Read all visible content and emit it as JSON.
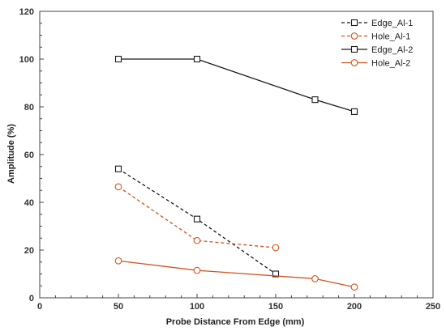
{
  "chart_data": {
    "type": "line",
    "title": "",
    "xlabel": "Probe Distance From Edge (mm)",
    "ylabel": "Amplitude (%)",
    "xlim": [
      0,
      250
    ],
    "ylim": [
      0,
      120
    ],
    "x_ticks": [
      0,
      50,
      100,
      150,
      200,
      250
    ],
    "y_ticks": [
      0,
      20,
      40,
      60,
      80,
      100,
      120
    ],
    "grid": false,
    "legend_position": "top-right",
    "series": [
      {
        "name": "Edge_Al-1",
        "color": "#1a1a1a",
        "line_style": "dashed",
        "marker": "square",
        "points": [
          [
            50,
            54
          ],
          [
            100,
            33
          ],
          [
            150,
            10
          ]
        ]
      },
      {
        "name": "Hole_Al-1",
        "color": "#d2541e",
        "line_style": "dashed",
        "marker": "circle",
        "points": [
          [
            50,
            46.5
          ],
          [
            100,
            24
          ],
          [
            150,
            21
          ]
        ]
      },
      {
        "name": "Edge_Al-2",
        "color": "#1a1a1a",
        "line_style": "solid",
        "marker": "square",
        "points": [
          [
            50,
            100
          ],
          [
            100,
            100
          ],
          [
            175,
            83
          ],
          [
            200,
            78
          ]
        ]
      },
      {
        "name": "Hole_Al-2",
        "color": "#d2541e",
        "line_style": "solid",
        "marker": "circle",
        "points": [
          [
            50,
            15.5
          ],
          [
            100,
            11.5
          ],
          [
            175,
            8
          ],
          [
            200,
            4.5
          ]
        ]
      }
    ]
  }
}
